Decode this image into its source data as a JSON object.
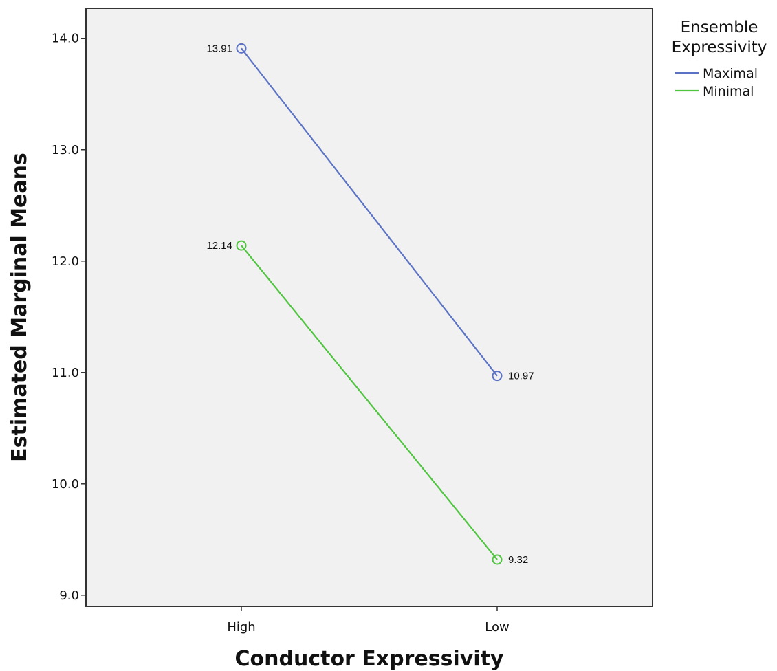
{
  "chart_data": {
    "type": "line",
    "xlabel": "Conductor Expressivity",
    "ylabel": "Estimated Marginal Means",
    "categories": [
      "High",
      "Low"
    ],
    "ylim": [
      8.9,
      14.27
    ],
    "yticks": [
      "9.0",
      "10.0",
      "11.0",
      "12.0",
      "13.0",
      "14.0"
    ],
    "grid": false,
    "legend": {
      "title_lines": [
        "Ensemble",
        "Expressivity"
      ],
      "placement": "outside-right"
    },
    "series": [
      {
        "name": "Maximal",
        "color": "#5b73c4",
        "values": [
          13.91,
          10.97
        ],
        "labels": [
          "13.91",
          "10.97"
        ]
      },
      {
        "name": "Minimal",
        "color": "#4fc43f",
        "values": [
          12.14,
          9.32
        ],
        "labels": [
          "12.14",
          "9.32"
        ]
      }
    ]
  }
}
